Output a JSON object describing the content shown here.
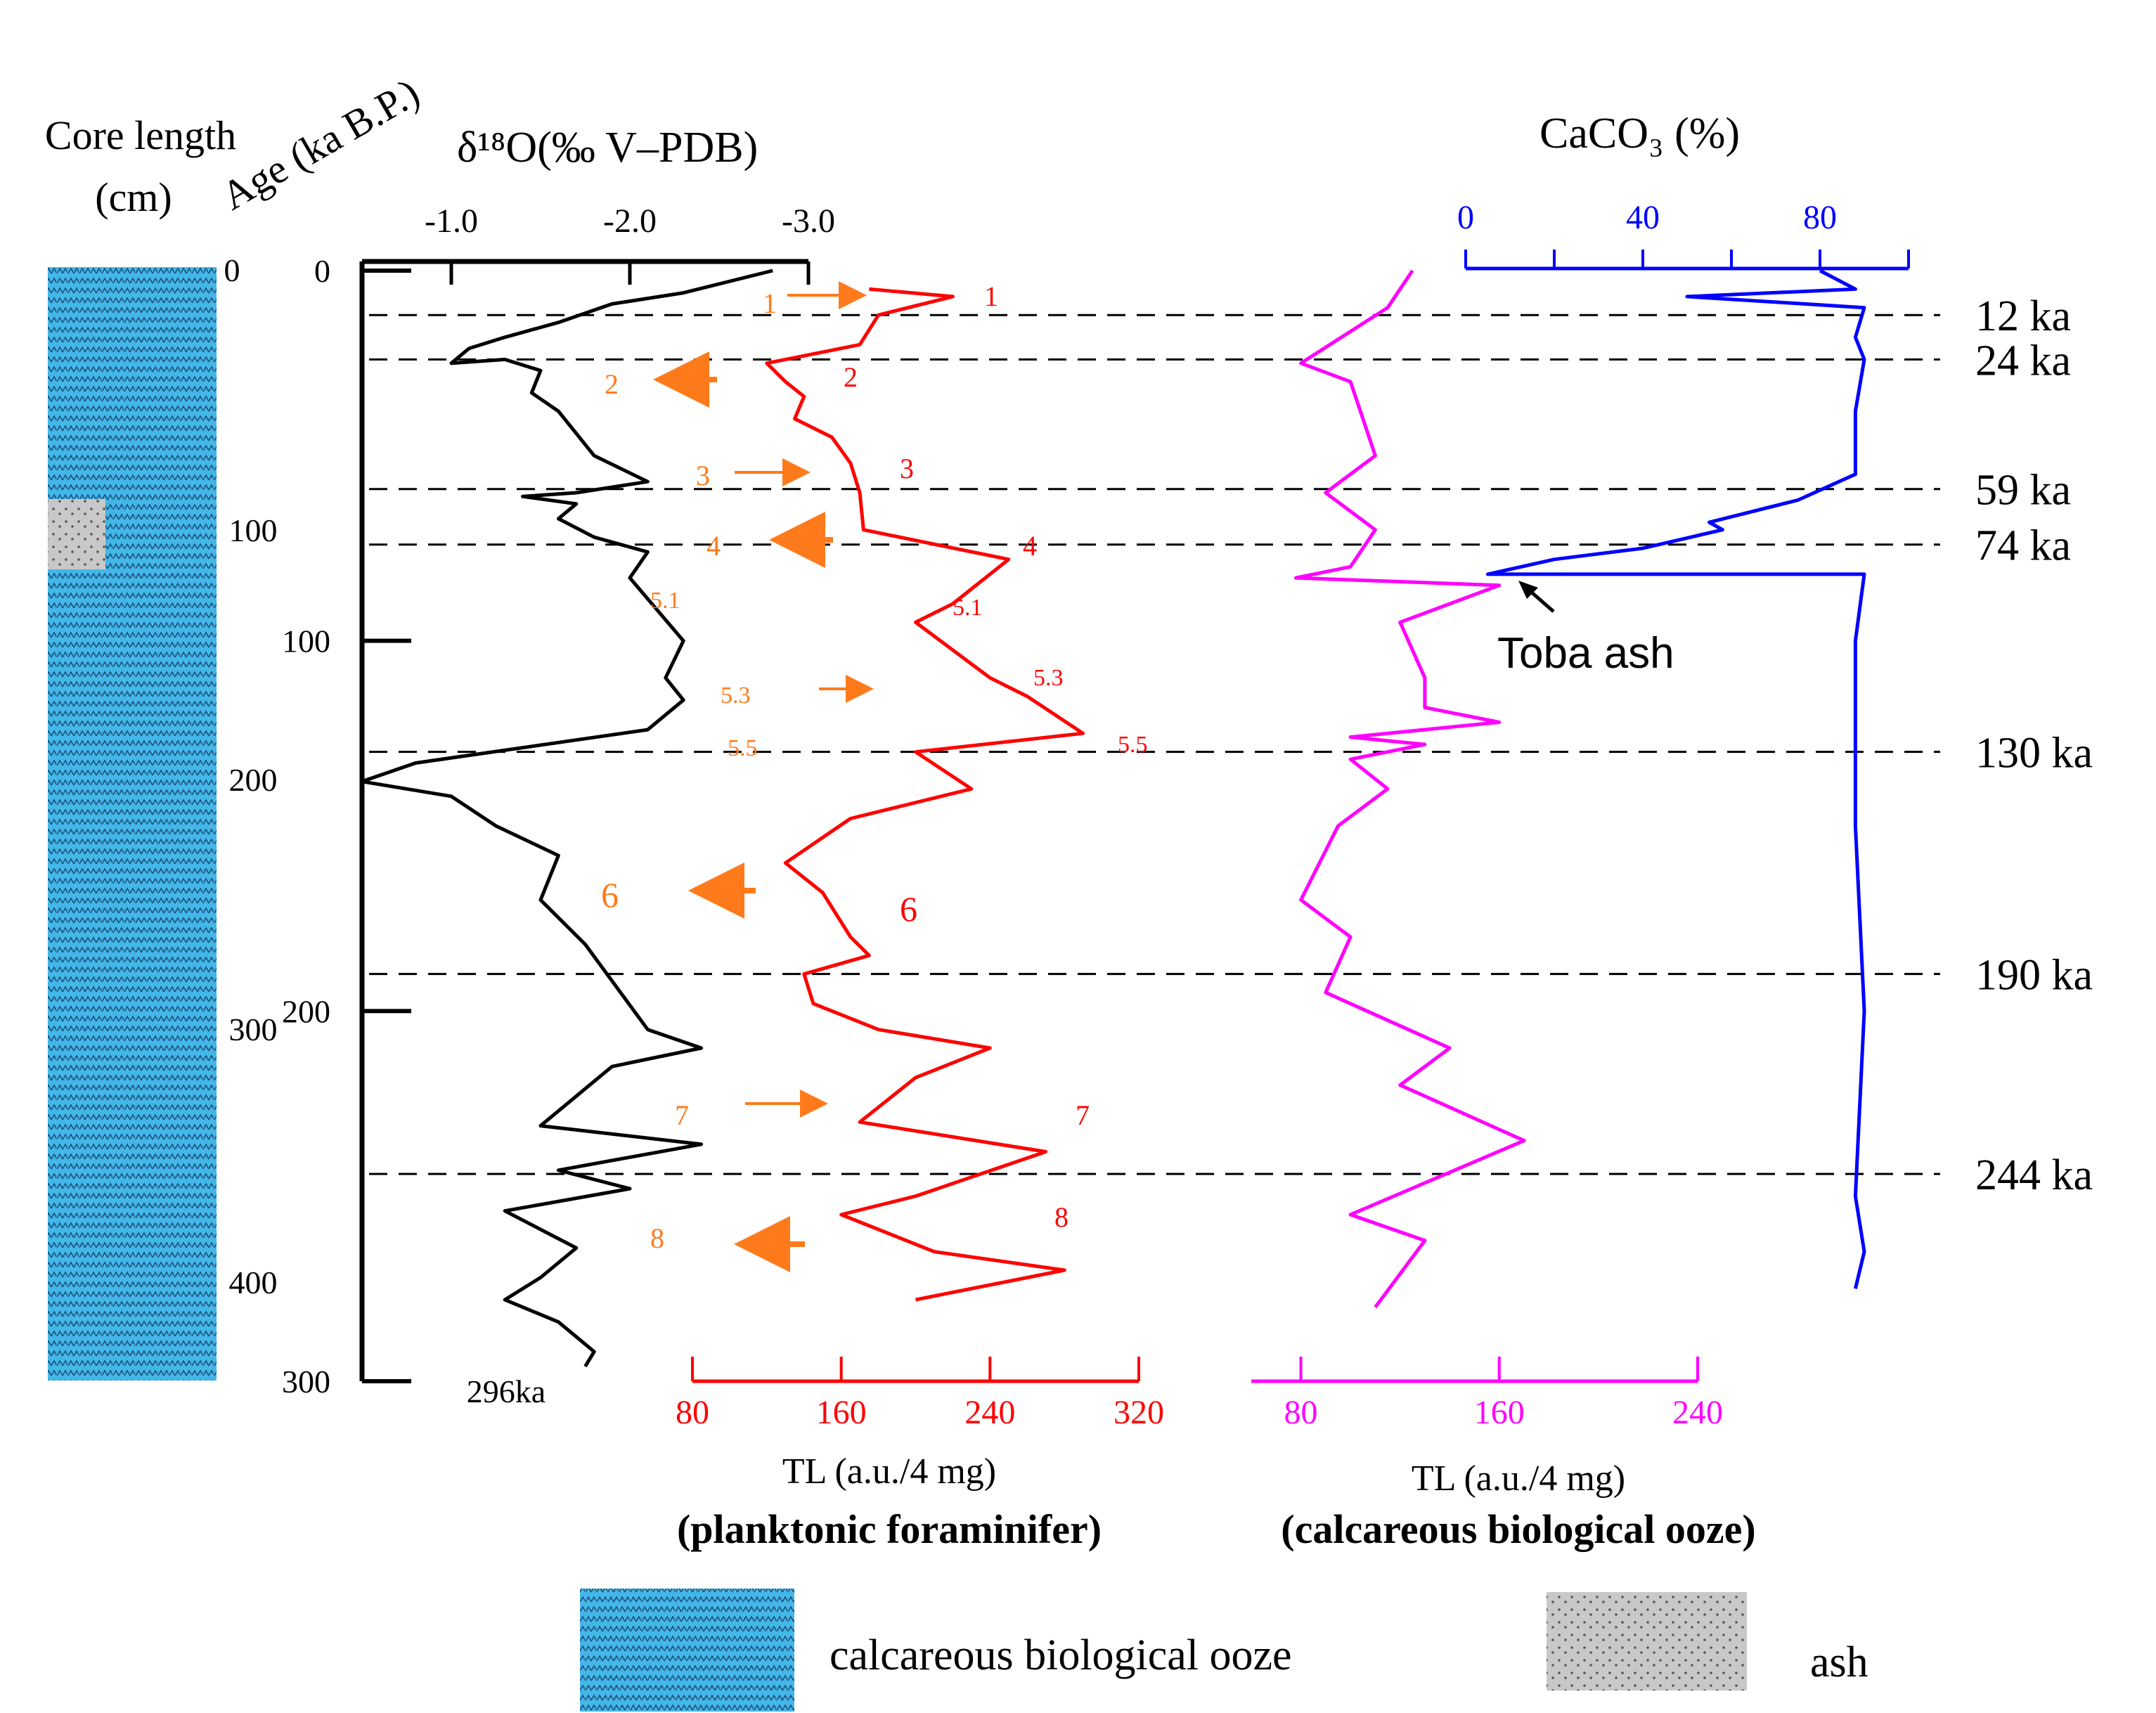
{
  "chart_data": {
    "type": "line",
    "description_labels": {
      "core_length": [
        "Core length",
        "(cm)"
      ],
      "age": "Age (ka B.P.)",
      "d18o_title": "δ¹⁸O(‰ V–PDB)",
      "caco3_title": "CaCO₃ (%)",
      "tl_forams": [
        "TL (a.u./4 mg)",
        "(planktonic foraminifer)"
      ],
      "tl_ooze": [
        "TL (a.u./4 mg)",
        "(calcareous biological ooze)"
      ],
      "toba": "Toba ash",
      "bottom_age": "296ka"
    },
    "axes": {
      "core_ticks": [
        "0",
        "100",
        "200",
        "300",
        "400"
      ],
      "age_ticks": [
        "0",
        "100",
        "200",
        "300"
      ],
      "d18o_ticks": [
        "-1.0",
        "-2.0",
        "-3.0"
      ],
      "caco3_ticks": [
        "0",
        "40",
        "80"
      ],
      "tl_forams_ticks": [
        "80",
        "160",
        "240",
        "320"
      ],
      "tl_ooze_ticks": [
        "80",
        "160",
        "240"
      ],
      "age_range": [
        0,
        300
      ],
      "d18o_range": [
        -0.5,
        -3.0
      ],
      "caco3_range": [
        0,
        100
      ],
      "tl_forams_range": [
        80,
        320
      ],
      "tl_ooze_range": [
        60,
        240
      ]
    },
    "boundaries": [
      {
        "age": 12,
        "label": "12 ka"
      },
      {
        "age": 24,
        "label": "24 ka"
      },
      {
        "age": 59,
        "label": "59 ka"
      },
      {
        "age": 74,
        "label": "74 ka"
      },
      {
        "age": 130,
        "label": "130 ka"
      },
      {
        "age": 190,
        "label": "190 ka"
      },
      {
        "age": 244,
        "label": "244 ka"
      }
    ],
    "series": [
      {
        "name": "δ18O",
        "color": "#000000",
        "points": [
          [
            -2.8,
            0
          ],
          [
            -2.3,
            6
          ],
          [
            -1.9,
            9
          ],
          [
            -1.6,
            14
          ],
          [
            -1.3,
            18
          ],
          [
            -1.1,
            21
          ],
          [
            -1.0,
            25
          ],
          [
            -1.3,
            24
          ],
          [
            -1.5,
            27
          ],
          [
            -1.45,
            33
          ],
          [
            -1.6,
            38
          ],
          [
            -1.7,
            44
          ],
          [
            -1.8,
            50
          ],
          [
            -2.1,
            57
          ],
          [
            -1.7,
            60
          ],
          [
            -1.4,
            61
          ],
          [
            -1.7,
            63
          ],
          [
            -1.6,
            67
          ],
          [
            -1.8,
            72
          ],
          [
            -2.1,
            76
          ],
          [
            -2.0,
            83
          ],
          [
            -2.3,
            100
          ],
          [
            -2.2,
            110
          ],
          [
            -2.3,
            116
          ],
          [
            -2.1,
            124
          ],
          [
            -0.8,
            133
          ],
          [
            -0.5,
            138
          ],
          [
            -1.0,
            142
          ],
          [
            -1.25,
            150
          ],
          [
            -1.6,
            158
          ],
          [
            -1.5,
            170
          ],
          [
            -1.75,
            182
          ],
          [
            -2.1,
            205
          ],
          [
            -2.4,
            210
          ],
          [
            -1.9,
            215
          ],
          [
            -1.5,
            231
          ],
          [
            -2.4,
            236
          ],
          [
            -1.6,
            243
          ],
          [
            -2.0,
            248
          ],
          [
            -1.3,
            254
          ],
          [
            -1.7,
            264
          ],
          [
            -1.5,
            272
          ],
          [
            -1.3,
            278
          ],
          [
            -1.6,
            284
          ],
          [
            -1.8,
            292
          ],
          [
            -1.75,
            296
          ]
        ]
      },
      {
        "name": "TL planktonic foraminifer",
        "color": "#ff0000",
        "points": [
          [
            175,
            5
          ],
          [
            220,
            7
          ],
          [
            180,
            12
          ],
          [
            170,
            20
          ],
          [
            150,
            22
          ],
          [
            120,
            25
          ],
          [
            130,
            30
          ],
          [
            140,
            34
          ],
          [
            135,
            40
          ],
          [
            155,
            45
          ],
          [
            165,
            52
          ],
          [
            170,
            60
          ],
          [
            172,
            70
          ],
          [
            250,
            78
          ],
          [
            220,
            90
          ],
          [
            200,
            95
          ],
          [
            240,
            110
          ],
          [
            260,
            115
          ],
          [
            290,
            125
          ],
          [
            200,
            130
          ],
          [
            230,
            140
          ],
          [
            165,
            148
          ],
          [
            130,
            160
          ],
          [
            150,
            168
          ],
          [
            165,
            180
          ],
          [
            175,
            185
          ],
          [
            140,
            190
          ],
          [
            145,
            198
          ],
          [
            180,
            205
          ],
          [
            240,
            210
          ],
          [
            200,
            218
          ],
          [
            170,
            230
          ],
          [
            270,
            238
          ],
          [
            200,
            250
          ],
          [
            160,
            255
          ],
          [
            210,
            265
          ],
          [
            280,
            270
          ],
          [
            200,
            278
          ]
        ]
      },
      {
        "name": "TL calcareous biological ooze",
        "color": "#ff00ff",
        "points": [
          [
            125,
            0
          ],
          [
            115,
            10
          ],
          [
            80,
            25
          ],
          [
            100,
            30
          ],
          [
            105,
            40
          ],
          [
            110,
            50
          ],
          [
            90,
            60
          ],
          [
            110,
            70
          ],
          [
            100,
            80
          ],
          [
            78,
            83
          ],
          [
            160,
            85
          ],
          [
            120,
            95
          ],
          [
            130,
            110
          ],
          [
            130,
            118
          ],
          [
            160,
            122
          ],
          [
            100,
            126
          ],
          [
            130,
            128
          ],
          [
            100,
            132
          ],
          [
            115,
            140
          ],
          [
            95,
            150
          ],
          [
            80,
            170
          ],
          [
            100,
            180
          ],
          [
            90,
            195
          ],
          [
            130,
            207
          ],
          [
            140,
            210
          ],
          [
            120,
            220
          ],
          [
            170,
            235
          ],
          [
            100,
            255
          ],
          [
            130,
            262
          ],
          [
            110,
            280
          ]
        ]
      },
      {
        "name": "CaCO3",
        "color": "#0000ff",
        "points": [
          [
            80,
            0
          ],
          [
            88,
            5
          ],
          [
            50,
            7
          ],
          [
            90,
            10
          ],
          [
            88,
            18
          ],
          [
            90,
            24
          ],
          [
            88,
            38
          ],
          [
            88,
            55
          ],
          [
            75,
            62
          ],
          [
            55,
            68
          ],
          [
            58,
            70
          ],
          [
            40,
            75
          ],
          [
            20,
            78
          ],
          [
            5,
            82
          ],
          [
            90,
            82
          ],
          [
            88,
            100
          ],
          [
            88,
            150
          ],
          [
            90,
            200
          ],
          [
            88,
            250
          ],
          [
            90,
            265
          ],
          [
            88,
            275
          ]
        ]
      }
    ],
    "annotations": {
      "left_labels": [
        "1",
        "2",
        "3",
        "4",
        "5.1",
        "5.3",
        "5.5",
        "6",
        "7",
        "8"
      ],
      "right_labels": [
        "1",
        "2",
        "3",
        "4",
        "5.1",
        "5.3",
        "5.5",
        "6",
        "7",
        "8"
      ]
    }
  },
  "legend": {
    "ooze_label": "calcareous biological ooze",
    "ash_label": "ash"
  },
  "colors": {
    "ooze_fill": "#43b7e8",
    "ash_fill": "#c8c8c8",
    "orange": "#ff7a1a",
    "red": "#ff0000",
    "magenta": "#ff00ff",
    "blue": "#0000ff"
  }
}
